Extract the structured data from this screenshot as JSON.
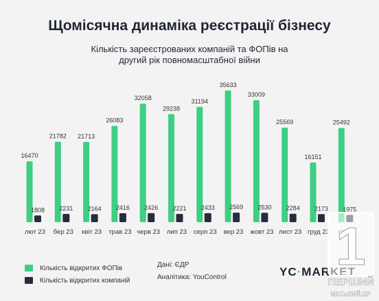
{
  "title": "Щомісячна динаміка реєстрації бізнесу",
  "subtitle_line1": "Кількість зареєстрованих компаній та ФОПів на",
  "subtitle_line2": "другий рік повномасштабної війни",
  "colors": {
    "fop": "#3ecf84",
    "company": "#262c3d",
    "background": "#f3f3f3"
  },
  "chart_data": {
    "type": "bar",
    "title": "Щомісячна динаміка реєстрації бізнесу",
    "subtitle": "Кількість зареєстрованих компаній та ФОПів на другий рік повномасштабної війни",
    "categories": [
      "лют 23",
      "бер 23",
      "квіт 23",
      "трав 23",
      "черв 23",
      "лип 23",
      "серп 23",
      "вер 23",
      "жовт 23",
      "лист 23",
      "груд 23",
      "січ 24"
    ],
    "series": [
      {
        "name": "Кількість відкритих ФОПів",
        "values": [
          16470,
          21782,
          21713,
          26083,
          32058,
          29238,
          31194,
          35633,
          33009,
          25569,
          16151,
          25492
        ]
      },
      {
        "name": "Кількість відкритих компаній",
        "values": [
          1808,
          2231,
          2164,
          2416,
          2426,
          2221,
          2433,
          2569,
          2530,
          2284,
          2173,
          1975
        ]
      }
    ],
    "ylim": [
      0,
      36000
    ],
    "grid": false,
    "legend": "bottom-left"
  },
  "legend": {
    "fop_label": "Кількість відкритих ФОПів",
    "company_label": "Кількість відкритих компаній"
  },
  "notes": {
    "source": "Дані: ЄДР",
    "analytics": "Аналітика: YouControl"
  },
  "brand": {
    "prefix": "YC",
    "dot": "·",
    "suffix": "MARKET"
  },
  "watermark": {
    "line1": "ПЕРШИЙ",
    "line2": "МІСЬКИЙ.КР",
    "digit": "1"
  }
}
